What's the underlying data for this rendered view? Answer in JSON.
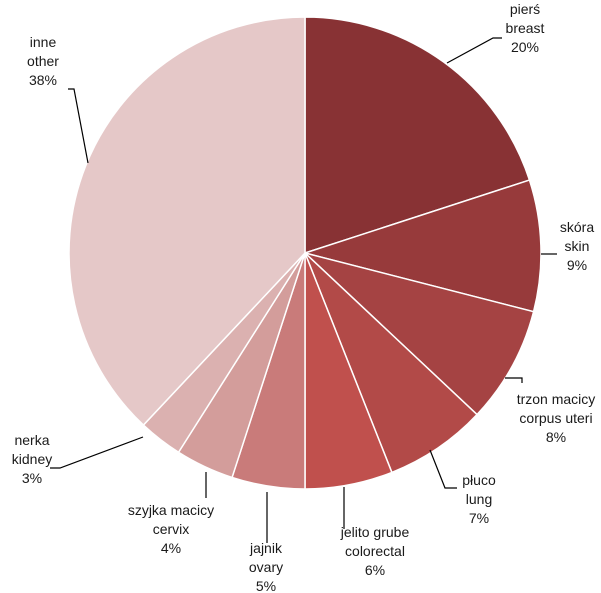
{
  "chart_data": {
    "type": "pie",
    "title": "",
    "start_angle_deg": 0,
    "direction": "clockwise",
    "slices": [
      {
        "label_pl": "pierś",
        "label_en": "breast",
        "value": 20,
        "pct_label": "20%",
        "color": "#883234"
      },
      {
        "label_pl": "skóra",
        "label_en": "skin",
        "value": 9,
        "pct_label": "9%",
        "color": "#973a3b"
      },
      {
        "label_pl": "trzon macicy",
        "label_en": "corpus uteri",
        "value": 8,
        "pct_label": "8%",
        "color": "#a54343"
      },
      {
        "label_pl": "płuco",
        "label_en": "lung",
        "value": 7,
        "pct_label": "7%",
        "color": "#b24a48"
      },
      {
        "label_pl": "jelito grube",
        "label_en": "colorectal",
        "value": 6,
        "pct_label": "6%",
        "color": "#c0504d"
      },
      {
        "label_pl": "jajnik",
        "label_en": "ovary",
        "value": 5,
        "pct_label": "5%",
        "color": "#c97b7a"
      },
      {
        "label_pl": "szyjka macicy",
        "label_en": "cervix",
        "value": 4,
        "pct_label": "4%",
        "color": "#d39d9b"
      },
      {
        "label_pl": "nerka",
        "label_en": "kidney",
        "value": 3,
        "pct_label": "3%",
        "color": "#dbb1b0"
      },
      {
        "label_pl": "inne",
        "label_en": "other",
        "value": 38,
        "pct_label": "38%",
        "color": "#e5c8c8"
      }
    ]
  }
}
